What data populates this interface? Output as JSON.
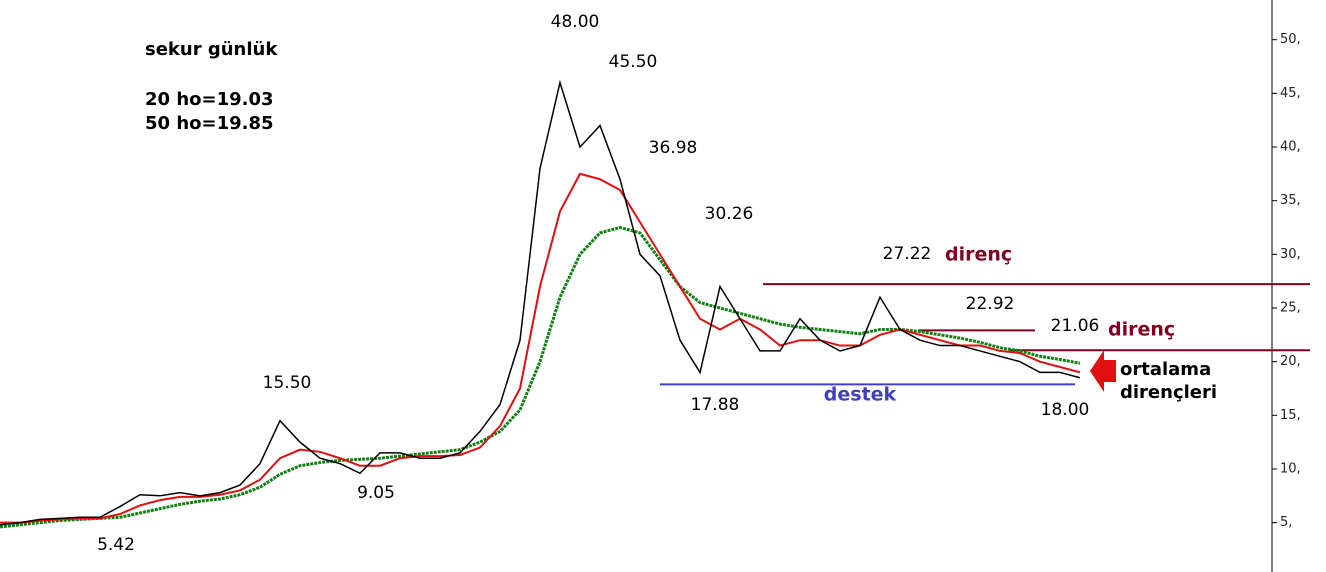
{
  "chart_data": {
    "type": "line",
    "title": "sekur günlük",
    "subtitle": [
      "20 ho=19.03",
      "50 ho=19.85"
    ],
    "series": [
      {
        "name": "sekur",
        "color": "#000000",
        "values": [
          4.8,
          5.0,
          5.3,
          5.4,
          5.5,
          5.5,
          6.5,
          7.6,
          7.5,
          7.8,
          7.5,
          7.8,
          8.5,
          10.5,
          14.5,
          12.5,
          11,
          10.5,
          9.6,
          11.5,
          11.5,
          11,
          11,
          11.5,
          13.5,
          16,
          22,
          38,
          46,
          40,
          42,
          37,
          30,
          28,
          22,
          19,
          27,
          24,
          21,
          21,
          24,
          22,
          21,
          21.5,
          26,
          23,
          22,
          21.5,
          21.5,
          21,
          20.5,
          20,
          19,
          19,
          18.5
        ]
      },
      {
        "name": "20 ho",
        "color": "#e01010",
        "values": [
          5.0,
          5.0,
          5.2,
          5.3,
          5.4,
          5.4,
          5.8,
          6.6,
          7.1,
          7.4,
          7.4,
          7.6,
          8.0,
          9.0,
          11.0,
          11.8,
          11.6,
          11.0,
          10.3,
          10.3,
          11.0,
          11.2,
          11.2,
          11.3,
          12.0,
          14.0,
          17.5,
          27,
          34,
          37.5,
          37,
          36,
          33,
          30,
          27,
          24,
          23,
          24,
          23,
          21.5,
          22,
          22,
          21.5,
          21.5,
          22.5,
          23,
          22.5,
          22,
          21.5,
          21.5,
          21,
          20.8,
          20,
          19.5,
          19.0
        ]
      },
      {
        "name": "50 ho",
        "color": "#108010",
        "values": [
          4.6,
          4.8,
          5.0,
          5.2,
          5.3,
          5.4,
          5.5,
          5.9,
          6.3,
          6.7,
          7.0,
          7.2,
          7.6,
          8.3,
          9.5,
          10.3,
          10.6,
          10.8,
          10.9,
          11.0,
          11.2,
          11.4,
          11.6,
          11.8,
          12.5,
          13.5,
          15.5,
          20,
          26,
          30,
          32,
          32.5,
          32,
          29.5,
          27,
          25.5,
          25,
          24.5,
          24,
          23.5,
          23.2,
          23,
          22.8,
          22.6,
          23,
          23,
          22.8,
          22.5,
          22.2,
          21.8,
          21.3,
          21,
          20.5,
          20.2,
          19.85
        ]
      }
    ],
    "ylim": [
      0.4,
      53.7
    ],
    "yticks": [
      {
        "value": 5,
        "label": "5,"
      },
      {
        "value": 10,
        "label": "10,"
      },
      {
        "value": 15,
        "label": "15,"
      },
      {
        "value": 20,
        "label": "20,"
      },
      {
        "value": 25,
        "label": "25,"
      },
      {
        "value": 30,
        "label": "30,"
      },
      {
        "value": 35,
        "label": "35,"
      },
      {
        "value": 40,
        "label": "40,"
      },
      {
        "value": 45,
        "label": "45,"
      },
      {
        "value": 50,
        "label": "50,"
      }
    ],
    "annotations": [
      "48.00",
      "45.50",
      "36.98",
      "30.26",
      "27.22",
      "22.92",
      "21.06",
      "15.50",
      "17.88",
      "18.00",
      "9.05",
      "5.42"
    ],
    "resistance": [
      27.22,
      21.06,
      22.92
    ],
    "resistance_labels": [
      "direnç",
      "direnç"
    ],
    "support": 17.88,
    "support_label": "destek",
    "arrow_label": [
      "ortalama",
      "dirençleri"
    ]
  }
}
